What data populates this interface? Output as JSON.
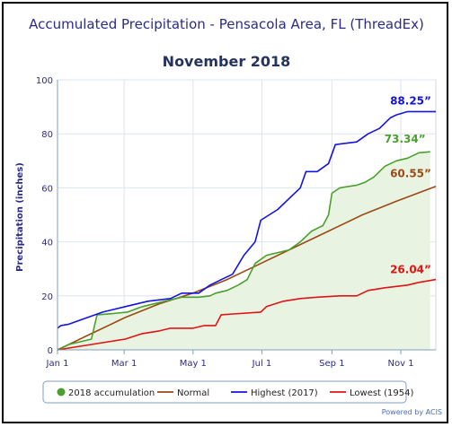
{
  "chart_data": {
    "type": "line",
    "title": "Accumulated Precipitation - Pensacola Area, FL (ThreadEx)",
    "subtitle": "November 2018",
    "xlabel": "",
    "ylabel": "Precipitation (inches)",
    "ylim": [
      0,
      100
    ],
    "yticks": [
      0,
      20,
      40,
      60,
      80,
      100
    ],
    "xlim": [
      0,
      335
    ],
    "xticks": [
      {
        "label": "Jan 1",
        "day": 0
      },
      {
        "label": "Mar 1",
        "day": 59
      },
      {
        "label": "May 1",
        "day": 120
      },
      {
        "label": "Jul 1",
        "day": 181
      },
      {
        "label": "Sep 1",
        "day": 243
      },
      {
        "label": "Nov 1",
        "day": 304
      }
    ],
    "grid": true,
    "legend_position": "bottom",
    "credit": "Powered by ACIS",
    "series": [
      {
        "name": "2018 accumulation",
        "color": "#4aa02c",
        "marker": "circle",
        "filled_area": true,
        "end_label": "73.34”",
        "points": [
          [
            0,
            0
          ],
          [
            10,
            2
          ],
          [
            20,
            3
          ],
          [
            30,
            4
          ],
          [
            35,
            13
          ],
          [
            50,
            13.5
          ],
          [
            62,
            14
          ],
          [
            75,
            16
          ],
          [
            95,
            18
          ],
          [
            110,
            19.5
          ],
          [
            125,
            19.5
          ],
          [
            135,
            20
          ],
          [
            140,
            21
          ],
          [
            150,
            22
          ],
          [
            160,
            24
          ],
          [
            168,
            26
          ],
          [
            175,
            32
          ],
          [
            185,
            35
          ],
          [
            195,
            36
          ],
          [
            205,
            37
          ],
          [
            215,
            40
          ],
          [
            225,
            44
          ],
          [
            235,
            46
          ],
          [
            240,
            50
          ],
          [
            243,
            58
          ],
          [
            250,
            60
          ],
          [
            265,
            61
          ],
          [
            272,
            62
          ],
          [
            280,
            64
          ],
          [
            290,
            68
          ],
          [
            300,
            70
          ],
          [
            310,
            71
          ],
          [
            320,
            73
          ],
          [
            330,
            73.34
          ]
        ]
      },
      {
        "name": "Normal",
        "color": "#9b4a14",
        "end_label": "60.55”",
        "points": [
          [
            0,
            0
          ],
          [
            30,
            6
          ],
          [
            60,
            12
          ],
          [
            90,
            17
          ],
          [
            120,
            21
          ],
          [
            150,
            26
          ],
          [
            180,
            32
          ],
          [
            210,
            38
          ],
          [
            240,
            44
          ],
          [
            270,
            50
          ],
          [
            300,
            55
          ],
          [
            335,
            60.55
          ]
        ]
      },
      {
        "name": "Highest (2017)",
        "color": "#1414e0",
        "end_label": "88.25”",
        "points": [
          [
            0,
            8
          ],
          [
            3,
            9
          ],
          [
            10,
            9.5
          ],
          [
            20,
            11
          ],
          [
            40,
            14
          ],
          [
            60,
            16
          ],
          [
            80,
            18
          ],
          [
            100,
            19
          ],
          [
            110,
            21
          ],
          [
            125,
            21
          ],
          [
            135,
            24
          ],
          [
            145,
            26
          ],
          [
            155,
            28
          ],
          [
            165,
            35
          ],
          [
            175,
            40
          ],
          [
            180,
            48
          ],
          [
            195,
            52
          ],
          [
            205,
            56
          ],
          [
            215,
            60
          ],
          [
            220,
            66
          ],
          [
            230,
            66
          ],
          [
            240,
            69
          ],
          [
            246,
            76
          ],
          [
            265,
            77
          ],
          [
            275,
            80
          ],
          [
            285,
            82
          ],
          [
            295,
            86
          ],
          [
            300,
            87
          ],
          [
            310,
            88.25
          ],
          [
            335,
            88.25
          ]
        ]
      },
      {
        "name": "Lowest (1954)",
        "color": "#e01414",
        "end_label": "26.04”",
        "points": [
          [
            0,
            0
          ],
          [
            15,
            1
          ],
          [
            30,
            2
          ],
          [
            45,
            3
          ],
          [
            60,
            4
          ],
          [
            75,
            6
          ],
          [
            90,
            7
          ],
          [
            100,
            8
          ],
          [
            120,
            8
          ],
          [
            130,
            9
          ],
          [
            140,
            9
          ],
          [
            145,
            13
          ],
          [
            180,
            14
          ],
          [
            185,
            16
          ],
          [
            200,
            18
          ],
          [
            215,
            19
          ],
          [
            230,
            19.5
          ],
          [
            250,
            20
          ],
          [
            265,
            20
          ],
          [
            275,
            22
          ],
          [
            290,
            23
          ],
          [
            310,
            24
          ],
          [
            320,
            25
          ],
          [
            335,
            26.04
          ]
        ]
      }
    ]
  }
}
